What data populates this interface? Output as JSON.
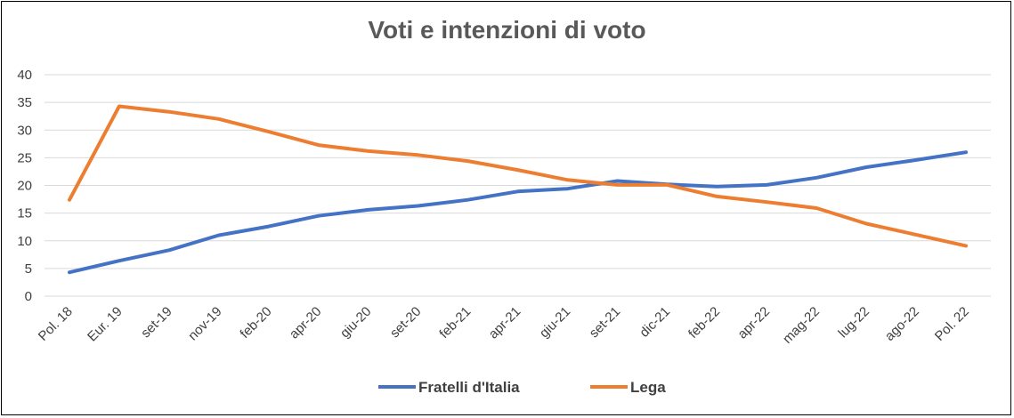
{
  "chart_data": {
    "type": "line",
    "title": "Voti e intenzioni di voto",
    "xlabel": "",
    "ylabel": "",
    "ylim": [
      0,
      40
    ],
    "yticks": [
      0,
      5,
      10,
      15,
      20,
      25,
      30,
      35,
      40
    ],
    "grid": true,
    "legend": "bottom",
    "categories": [
      "Pol. 18",
      "Eur. 19",
      "set-19",
      "nov-19",
      "feb-20",
      "apr-20",
      "giu-20",
      "set-20",
      "feb-21",
      "apr-21",
      "giu-21",
      "set-21",
      "dic-21",
      "feb-22",
      "apr-22",
      "mag-22",
      "lug-22",
      "ago-22",
      "Pol. 22"
    ],
    "series": [
      {
        "name": "Fratelli d'Italia",
        "color": "#4472C4",
        "values": [
          4.3,
          6.4,
          8.3,
          11.0,
          12.6,
          14.5,
          15.6,
          16.3,
          17.4,
          18.9,
          19.4,
          20.8,
          20.2,
          19.8,
          20.1,
          21.4,
          23.3,
          24.6,
          26.0
        ]
      },
      {
        "name": "Lega",
        "color": "#ED7D31",
        "values": [
          17.4,
          34.3,
          33.3,
          32.0,
          29.7,
          27.3,
          26.2,
          25.5,
          24.4,
          22.8,
          21.0,
          20.1,
          20.1,
          18.0,
          17.0,
          15.9,
          13.1,
          11.1,
          9.1
        ]
      }
    ]
  }
}
